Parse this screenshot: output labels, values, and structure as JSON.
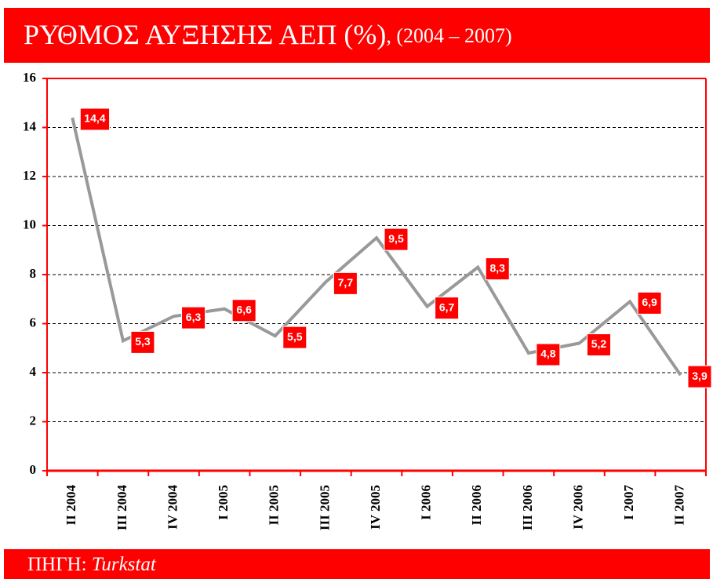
{
  "chart_data": {
    "type": "line",
    "title": "ΡΥΘΜΟΣ ΑΥΞΗΣΗΣ ΑΕΠ (%)",
    "subtitle": ", (2004 – 2007)",
    "categories": [
      "II 2004",
      "III 2004",
      "IV 2004",
      "I 2005",
      "II 2005",
      "III 2005",
      "IV 2005",
      "I 2006",
      "II 2006",
      "III 2006",
      "IV 2006",
      "I 2007",
      "II 2007"
    ],
    "values": [
      14.4,
      5.3,
      6.3,
      6.6,
      5.5,
      7.7,
      9.5,
      6.7,
      8.3,
      4.8,
      5.2,
      6.9,
      3.9
    ],
    "value_labels": [
      "14,4",
      "5,3",
      "6,3",
      "6,6",
      "5,5",
      "7,7",
      "9,5",
      "6,7",
      "8,3",
      "4,8",
      "5,2",
      "6,9",
      "3,9"
    ],
    "color": "#999999",
    "label_color": "#ff0000",
    "ylim": [
      0,
      16
    ],
    "yticks": [
      0,
      2,
      4,
      6,
      8,
      10,
      12,
      14,
      16
    ],
    "grid": true
  },
  "footer": {
    "label": "ΠΗΓΗ:",
    "source": "Turkstat"
  }
}
